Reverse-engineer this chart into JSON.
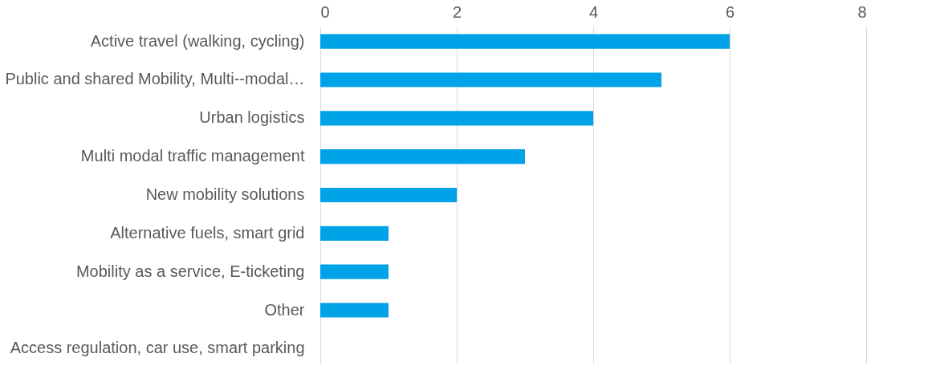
{
  "chart_data": {
    "type": "bar",
    "orientation": "horizontal",
    "categories": [
      "Active travel (walking, cycling)",
      "Public and shared Mobility, Multi--modal…",
      "Urban logistics",
      "Multi modal traffic management",
      "New mobility solutions",
      "Alternative fuels, smart grid",
      "Mobility as a service, E-ticketing",
      "Other",
      "Access regulation, car use, smart parking"
    ],
    "values": [
      6,
      5,
      4,
      3,
      2,
      1,
      1,
      1,
      0
    ],
    "color": "#00a2e8",
    "xlim": [
      0,
      8
    ],
    "xticks": [
      0,
      2,
      4,
      6,
      8
    ],
    "grid": "x"
  }
}
